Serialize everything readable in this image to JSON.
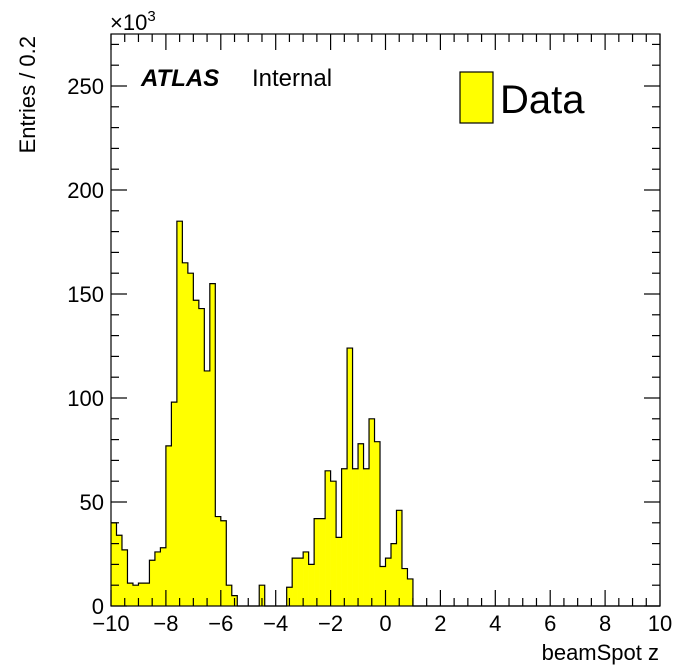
{
  "chart_data": {
    "type": "bar",
    "histogram": true,
    "xlabel": "beamSpot z",
    "ylabel": "Entries / 0.2",
    "y_multiplier": "×10",
    "y_multiplier_exponent": "3",
    "xlim": [
      -10,
      10
    ],
    "ylim": [
      0,
      275
    ],
    "x_ticks": [
      -10,
      -8,
      -6,
      -4,
      -2,
      0,
      2,
      4,
      6,
      8,
      10
    ],
    "x_tick_labels": [
      "−10",
      "−8",
      "−6",
      "−4",
      "−2",
      "0",
      "2",
      "4",
      "6",
      "8",
      "10"
    ],
    "y_ticks": [
      0,
      50,
      100,
      150,
      200,
      250
    ],
    "y_tick_labels": [
      "0",
      "50",
      "100",
      "150",
      "200",
      "250"
    ],
    "bin_width": 0.2,
    "bin_start": -10,
    "values": [
      40,
      34,
      27,
      11,
      10,
      11,
      11,
      22,
      26,
      28,
      77,
      98,
      185,
      165,
      160,
      147,
      143,
      113,
      155,
      43,
      41,
      10,
      5,
      0,
      0,
      0,
      0,
      10,
      0,
      0,
      0,
      0,
      9,
      23,
      23,
      26,
      20,
      42,
      42,
      65,
      60,
      33,
      66,
      124,
      66,
      78,
      66,
      90,
      79,
      19,
      23,
      30,
      46,
      18,
      13,
      0,
      0,
      0,
      0,
      0,
      0,
      0,
      0,
      0,
      0,
      0,
      0,
      0,
      0,
      0,
      0,
      0,
      0,
      0,
      0,
      0,
      0,
      0,
      0,
      0,
      0,
      0,
      0,
      0,
      0,
      0,
      0,
      0,
      0,
      0,
      0,
      0,
      0,
      0,
      0,
      0,
      0,
      0,
      0,
      0
    ],
    "fill_color": "#ffff00",
    "line_color": "#000000",
    "legend": [
      {
        "label": "Data",
        "color": "#ffff00"
      }
    ],
    "legend_placement": "top-right",
    "grid": false
  },
  "annotation": {
    "experiment": "ATLAS",
    "status": "Internal"
  }
}
